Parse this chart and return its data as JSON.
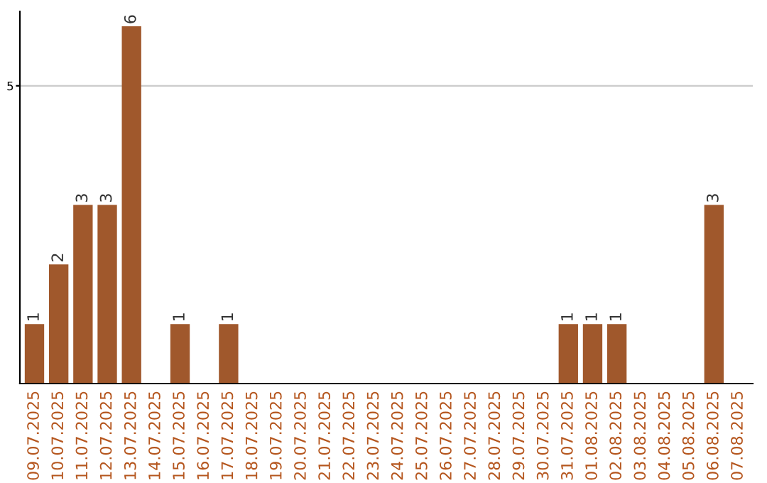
{
  "chart_data": {
    "type": "bar",
    "categories": [
      "09.07.2025",
      "10.07.2025",
      "11.07.2025",
      "12.07.2025",
      "13.07.2025",
      "14.07.2025",
      "15.07.2025",
      "16.07.2025",
      "17.07.2025",
      "18.07.2025",
      "19.07.2025",
      "20.07.2025",
      "21.07.2025",
      "22.07.2025",
      "23.07.2025",
      "24.07.2025",
      "25.07.2025",
      "26.07.2025",
      "27.07.2025",
      "28.07.2025",
      "29.07.2025",
      "30.07.2025",
      "31.07.2025",
      "01.08.2025",
      "02.08.2025",
      "03.08.2025",
      "04.08.2025",
      "05.08.2025",
      "06.08.2025",
      "07.08.2025"
    ],
    "values": [
      1,
      2,
      3,
      3,
      6,
      0,
      1,
      0,
      1,
      0,
      0,
      0,
      0,
      0,
      0,
      0,
      0,
      0,
      0,
      0,
      0,
      0,
      1,
      1,
      1,
      0,
      0,
      0,
      3,
      0
    ],
    "value_labels": [
      "1",
      "2",
      "3",
      "3",
      "6",
      null,
      "1",
      null,
      "1",
      null,
      null,
      null,
      null,
      null,
      null,
      null,
      null,
      null,
      null,
      null,
      null,
      null,
      "1",
      "1",
      "1",
      null,
      null,
      null,
      "3",
      null
    ],
    "color": "#a0582c",
    "ylim": [
      0,
      6.25
    ],
    "yticks": [
      5
    ],
    "grid": "y",
    "legend": false
  }
}
